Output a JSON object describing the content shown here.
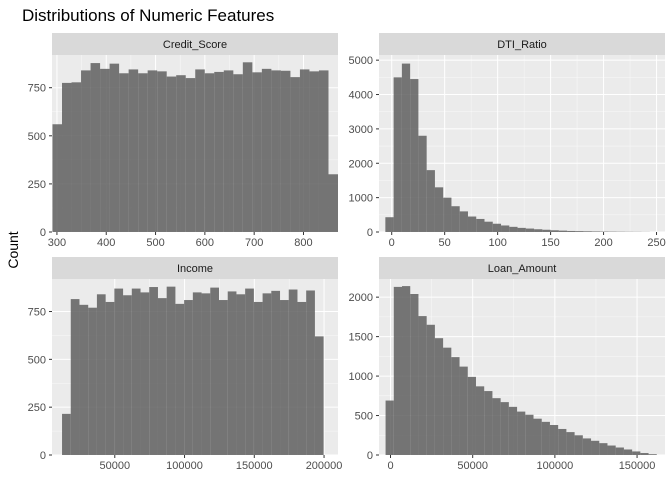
{
  "figure": {
    "title": "Distributions of Numeric Features",
    "ylabel": "Count"
  },
  "colors": {
    "panel_bg": "#ebebeb",
    "strip_bg": "#d9d9d9",
    "grid_major": "#ffffff",
    "bar_fill": "#595959",
    "tick_color": "#333333"
  },
  "chart_data": [
    {
      "type": "bar",
      "title": "Credit_Score",
      "xlabel": "",
      "ylabel": "Count",
      "bins": 30,
      "xlim": [
        290,
        870
      ],
      "ylim": [
        0,
        920
      ],
      "xticks": [
        300,
        400,
        500,
        600,
        700,
        800
      ],
      "xtick_labels": [
        "300",
        "400",
        "500",
        "600",
        "700",
        "800"
      ],
      "yticks": [
        0,
        250,
        500,
        750
      ],
      "ytick_labels": [
        "0",
        "250",
        "500",
        "750"
      ],
      "bin_start": 291,
      "bin_width": 19.3,
      "values": [
        560,
        775,
        778,
        840,
        878,
        848,
        875,
        825,
        845,
        825,
        840,
        835,
        808,
        815,
        800,
        845,
        825,
        832,
        840,
        820,
        882,
        830,
        848,
        840,
        838,
        805,
        845,
        835,
        840,
        300
      ]
    },
    {
      "type": "bar",
      "title": "DTI_Ratio",
      "xlabel": "",
      "ylabel": "Count",
      "bins": 32,
      "xlim": [
        -12,
        258
      ],
      "ylim": [
        0,
        5150
      ],
      "xticks": [
        0,
        50,
        100,
        150,
        200,
        250
      ],
      "xtick_labels": [
        "0",
        "50",
        "100",
        "150",
        "200",
        "250"
      ],
      "yticks": [
        0,
        1000,
        2000,
        3000,
        4000,
        5000
      ],
      "ytick_labels": [
        "0",
        "1000",
        "2000",
        "3000",
        "4000",
        "5000"
      ],
      "bin_start": -6,
      "bin_width": 7.8,
      "values": [
        430,
        4500,
        4900,
        4450,
        2800,
        1800,
        1300,
        1000,
        750,
        600,
        450,
        380,
        300,
        240,
        190,
        150,
        120,
        100,
        80,
        65,
        50,
        40,
        30,
        25,
        20,
        15,
        12,
        10,
        8,
        6,
        5,
        3
      ]
    },
    {
      "type": "bar",
      "title": "Income",
      "xlabel": "",
      "ylabel": "Count",
      "bins": 30,
      "xlim": [
        5000,
        210000
      ],
      "ylim": [
        0,
        920
      ],
      "xticks": [
        50000,
        100000,
        150000,
        200000
      ],
      "xtick_labels": [
        "50000",
        "100000",
        "150000",
        "200000"
      ],
      "yticks": [
        0,
        250,
        500,
        750
      ],
      "ytick_labels": [
        "0",
        "250",
        "500",
        "750"
      ],
      "bin_start": 12200,
      "bin_width": 6250,
      "values": [
        215,
        815,
        785,
        770,
        840,
        800,
        870,
        835,
        870,
        850,
        878,
        820,
        880,
        790,
        810,
        850,
        845,
        875,
        810,
        855,
        840,
        870,
        800,
        845,
        858,
        810,
        865,
        800,
        860,
        620
      ]
    },
    {
      "type": "bar",
      "title": "Loan_Amount",
      "xlabel": "",
      "ylabel": "Count",
      "bins": 33,
      "xlim": [
        -7000,
        167000
      ],
      "ylim": [
        0,
        2230
      ],
      "xticks": [
        0,
        50000,
        100000,
        150000
      ],
      "xtick_labels": [
        "0",
        "50000",
        "100000",
        "150000"
      ],
      "yticks": [
        0,
        500,
        1000,
        1500,
        2000
      ],
      "ytick_labels": [
        "0",
        "500",
        "1000",
        "1500",
        "2000"
      ],
      "bin_start": -3000,
      "bin_width": 5000,
      "values": [
        690,
        2130,
        2140,
        2040,
        1760,
        1650,
        1480,
        1360,
        1240,
        1120,
        990,
        870,
        810,
        720,
        670,
        610,
        550,
        510,
        460,
        420,
        380,
        330,
        290,
        250,
        210,
        180,
        150,
        120,
        95,
        70,
        45,
        25,
        10
      ]
    }
  ]
}
